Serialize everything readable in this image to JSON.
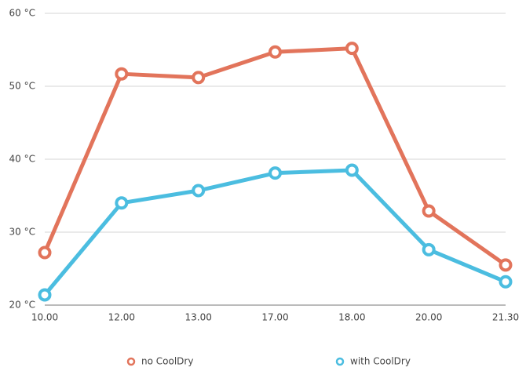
{
  "chart_data": {
    "type": "line",
    "categories": [
      "10.00",
      "12.00",
      "13.00",
      "17.00",
      "18.00",
      "20.00",
      "21.30"
    ],
    "series": [
      {
        "name": "no CoolDry",
        "color": "#e2745b",
        "values": [
          27.2,
          51.7,
          51.2,
          54.7,
          55.2,
          32.9,
          25.5
        ]
      },
      {
        "name": "with CoolDry",
        "color": "#4bbde0",
        "values": [
          21.4,
          34.0,
          35.7,
          38.1,
          38.5,
          27.6,
          23.2
        ]
      }
    ],
    "ylim": [
      20,
      60
    ],
    "yticks": [
      {
        "value": 20,
        "label": "20 °C"
      },
      {
        "value": 30,
        "label": "30 °C"
      },
      {
        "value": 40,
        "label": "40 °C"
      },
      {
        "value": 50,
        "label": "50 °C"
      },
      {
        "value": 60,
        "label": "60 °C"
      }
    ],
    "grid": true,
    "legend": "bottom"
  }
}
